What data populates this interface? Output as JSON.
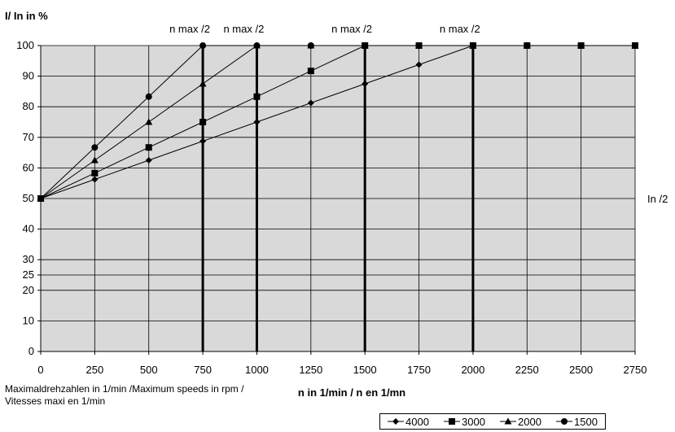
{
  "chart_data": {
    "type": "line",
    "ylabel": "I/ In in %",
    "xlabel": "n in 1/min / n en 1/mn",
    "xlim": [
      0,
      2750
    ],
    "ylim": [
      0,
      100
    ],
    "x_ticks": [
      0,
      250,
      500,
      750,
      1000,
      1250,
      1500,
      1750,
      2000,
      2250,
      2500,
      2750
    ],
    "y_ticks": [
      0,
      10,
      20,
      25,
      30,
      40,
      50,
      60,
      70,
      80,
      90,
      100
    ],
    "grid": true,
    "legend_position": "bottom-right",
    "series": [
      {
        "name": "4000",
        "marker": "diamond",
        "points": [
          [
            0,
            50
          ],
          [
            250,
            56.25
          ],
          [
            500,
            62.5
          ],
          [
            750,
            68.75
          ],
          [
            1000,
            75
          ],
          [
            1250,
            81.25
          ],
          [
            1500,
            87.5
          ],
          [
            1750,
            93.75
          ],
          [
            2000,
            100
          ],
          [
            2250,
            100
          ],
          [
            2500,
            100
          ],
          [
            2750,
            100
          ]
        ]
      },
      {
        "name": "3000",
        "marker": "square",
        "points": [
          [
            0,
            50
          ],
          [
            250,
            58.3
          ],
          [
            500,
            66.7
          ],
          [
            750,
            75
          ],
          [
            1000,
            83.3
          ],
          [
            1250,
            91.7
          ],
          [
            1500,
            100
          ],
          [
            1750,
            100
          ],
          [
            2000,
            100
          ],
          [
            2250,
            100
          ],
          [
            2500,
            100
          ],
          [
            2750,
            100
          ]
        ]
      },
      {
        "name": "2000",
        "marker": "triangle",
        "points": [
          [
            0,
            50
          ],
          [
            250,
            62.5
          ],
          [
            500,
            75
          ],
          [
            750,
            87.5
          ],
          [
            1000,
            100
          ],
          [
            1250,
            100
          ],
          [
            1500,
            100
          ],
          [
            1750,
            100
          ],
          [
            2000,
            100
          ],
          [
            2250,
            100
          ],
          [
            2500,
            100
          ],
          [
            2750,
            100
          ]
        ]
      },
      {
        "name": "1500",
        "marker": "circle",
        "points": [
          [
            0,
            50
          ],
          [
            250,
            66.7
          ],
          [
            500,
            83.3
          ],
          [
            750,
            100
          ],
          [
            1000,
            100
          ],
          [
            1250,
            100
          ],
          [
            1500,
            100
          ],
          [
            1750,
            100
          ],
          [
            2000,
            100
          ],
          [
            2250,
            100
          ],
          [
            2500,
            100
          ],
          [
            2750,
            100
          ]
        ]
      }
    ],
    "vertical_lines": [
      {
        "x": 750,
        "label": "n max /2"
      },
      {
        "x": 1000,
        "label": "n max /2"
      },
      {
        "x": 1500,
        "label": "n max /2"
      },
      {
        "x": 2000,
        "label": "n max /2"
      }
    ],
    "right_annotation": {
      "y": 50,
      "label": "In /2"
    }
  },
  "caption": {
    "line1": "Maximaldrehzahlen in 1/min /Maximum speeds in rpm /",
    "line2": "Vitesses maxi en 1/min"
  },
  "legend": {
    "items": [
      {
        "label": "4000",
        "marker": "diamond"
      },
      {
        "label": "3000",
        "marker": "square"
      },
      {
        "label": "2000",
        "marker": "triangle"
      },
      {
        "label": "1500",
        "marker": "circle"
      }
    ]
  }
}
